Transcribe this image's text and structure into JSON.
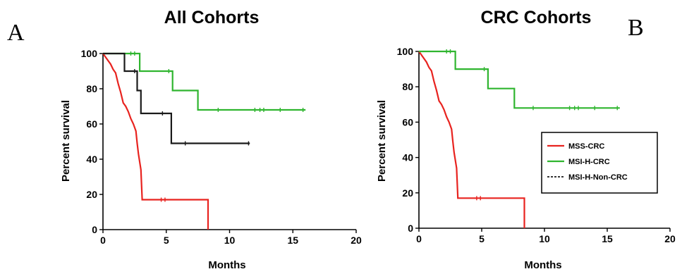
{
  "chart_data": [
    {
      "type": "line",
      "panel_letter": "A",
      "title": "All Cohorts",
      "xlabel": "Months",
      "ylabel": "Percent survival",
      "xlim": [
        0,
        20
      ],
      "ylim": [
        0,
        100
      ],
      "xticks": [
        "0",
        "5",
        "10",
        "15",
        "20"
      ],
      "yticks": [
        "0",
        "20",
        "40",
        "60",
        "80",
        "100"
      ],
      "grid": false,
      "series": [
        {
          "color": "#e8231f",
          "points": [
            [
              0,
              100
            ],
            [
              0.3,
              97
            ],
            [
              0.6,
              94
            ],
            [
              0.8,
              91
            ],
            [
              1.0,
              89
            ],
            [
              1.2,
              83
            ],
            [
              1.4,
              78
            ],
            [
              1.6,
              72
            ],
            [
              1.8,
              70
            ],
            [
              2.0,
              67
            ],
            [
              2.2,
              63
            ],
            [
              2.4,
              60
            ],
            [
              2.6,
              56
            ],
            [
              2.7,
              49
            ],
            [
              2.8,
              43
            ],
            [
              3.0,
              34
            ],
            [
              3.1,
              17
            ],
            [
              8.3,
              17
            ],
            [
              8.3,
              0
            ]
          ],
          "censor": [
            [
              4.6,
              17
            ],
            [
              4.9,
              17
            ]
          ]
        },
        {
          "color": "#2fb52f",
          "points": [
            [
              0,
              100
            ],
            [
              2.9,
              100
            ],
            [
              2.9,
              90
            ],
            [
              5.5,
              90
            ],
            [
              5.5,
              79
            ],
            [
              7.5,
              79
            ],
            [
              7.5,
              68
            ],
            [
              16,
              68
            ]
          ],
          "censor": [
            [
              2.2,
              100
            ],
            [
              2.5,
              100
            ],
            [
              5.2,
              90
            ],
            [
              9.1,
              68
            ],
            [
              12.0,
              68
            ],
            [
              12.4,
              68
            ],
            [
              12.7,
              68
            ],
            [
              14.0,
              68
            ],
            [
              15.8,
              68
            ]
          ]
        },
        {
          "color": "#1a1a1a",
          "points": [
            [
              0,
              100
            ],
            [
              1.7,
              100
            ],
            [
              1.7,
              90
            ],
            [
              2.7,
              90
            ],
            [
              2.7,
              79
            ],
            [
              3.0,
              79
            ],
            [
              3.0,
              66
            ],
            [
              5.4,
              66
            ],
            [
              5.4,
              49
            ],
            [
              11.6,
              49
            ]
          ],
          "censor": [
            [
              2.5,
              90
            ],
            [
              4.7,
              66
            ],
            [
              6.5,
              49
            ],
            [
              11.5,
              49
            ]
          ]
        }
      ]
    },
    {
      "type": "line",
      "panel_letter": "B",
      "title": "CRC Cohorts",
      "xlabel": "Months",
      "ylabel": "Percent survival",
      "xlim": [
        0,
        20
      ],
      "ylim": [
        0,
        100
      ],
      "xticks": [
        "0",
        "5",
        "10",
        "15",
        "20"
      ],
      "yticks": [
        "0",
        "20",
        "40",
        "60",
        "80",
        "100"
      ],
      "grid": false,
      "legend_position": "right",
      "legend": [
        {
          "name": "MSS-CRC",
          "color": "#e8231f",
          "style": "solid"
        },
        {
          "name": "MSI-H-CRC",
          "color": "#2fb52f",
          "style": "solid"
        },
        {
          "name": "MSI-H-Non-CRC",
          "color": "#1a1a1a",
          "style": "dashed"
        }
      ],
      "series": [
        {
          "color": "#e8231f",
          "points": [
            [
              0,
              100
            ],
            [
              0.3,
              97
            ],
            [
              0.6,
              94
            ],
            [
              0.8,
              91
            ],
            [
              1.0,
              89
            ],
            [
              1.2,
              83
            ],
            [
              1.4,
              78
            ],
            [
              1.6,
              72
            ],
            [
              1.8,
              70
            ],
            [
              2.0,
              67
            ],
            [
              2.2,
              63
            ],
            [
              2.4,
              60
            ],
            [
              2.6,
              56
            ],
            [
              2.7,
              49
            ],
            [
              2.8,
              43
            ],
            [
              3.0,
              34
            ],
            [
              3.1,
              17
            ],
            [
              8.4,
              17
            ],
            [
              8.4,
              0
            ]
          ],
          "censor": [
            [
              4.6,
              17
            ],
            [
              4.9,
              17
            ]
          ]
        },
        {
          "color": "#2fb52f",
          "points": [
            [
              0,
              100
            ],
            [
              2.9,
              100
            ],
            [
              2.9,
              90
            ],
            [
              5.5,
              90
            ],
            [
              5.5,
              79
            ],
            [
              7.6,
              79
            ],
            [
              7.6,
              68
            ],
            [
              16,
              68
            ]
          ],
          "censor": [
            [
              2.2,
              100
            ],
            [
              2.5,
              100
            ],
            [
              5.2,
              90
            ],
            [
              9.1,
              68
            ],
            [
              12.0,
              68
            ],
            [
              12.4,
              68
            ],
            [
              12.7,
              68
            ],
            [
              14.0,
              68
            ],
            [
              15.8,
              68
            ]
          ]
        }
      ]
    }
  ]
}
